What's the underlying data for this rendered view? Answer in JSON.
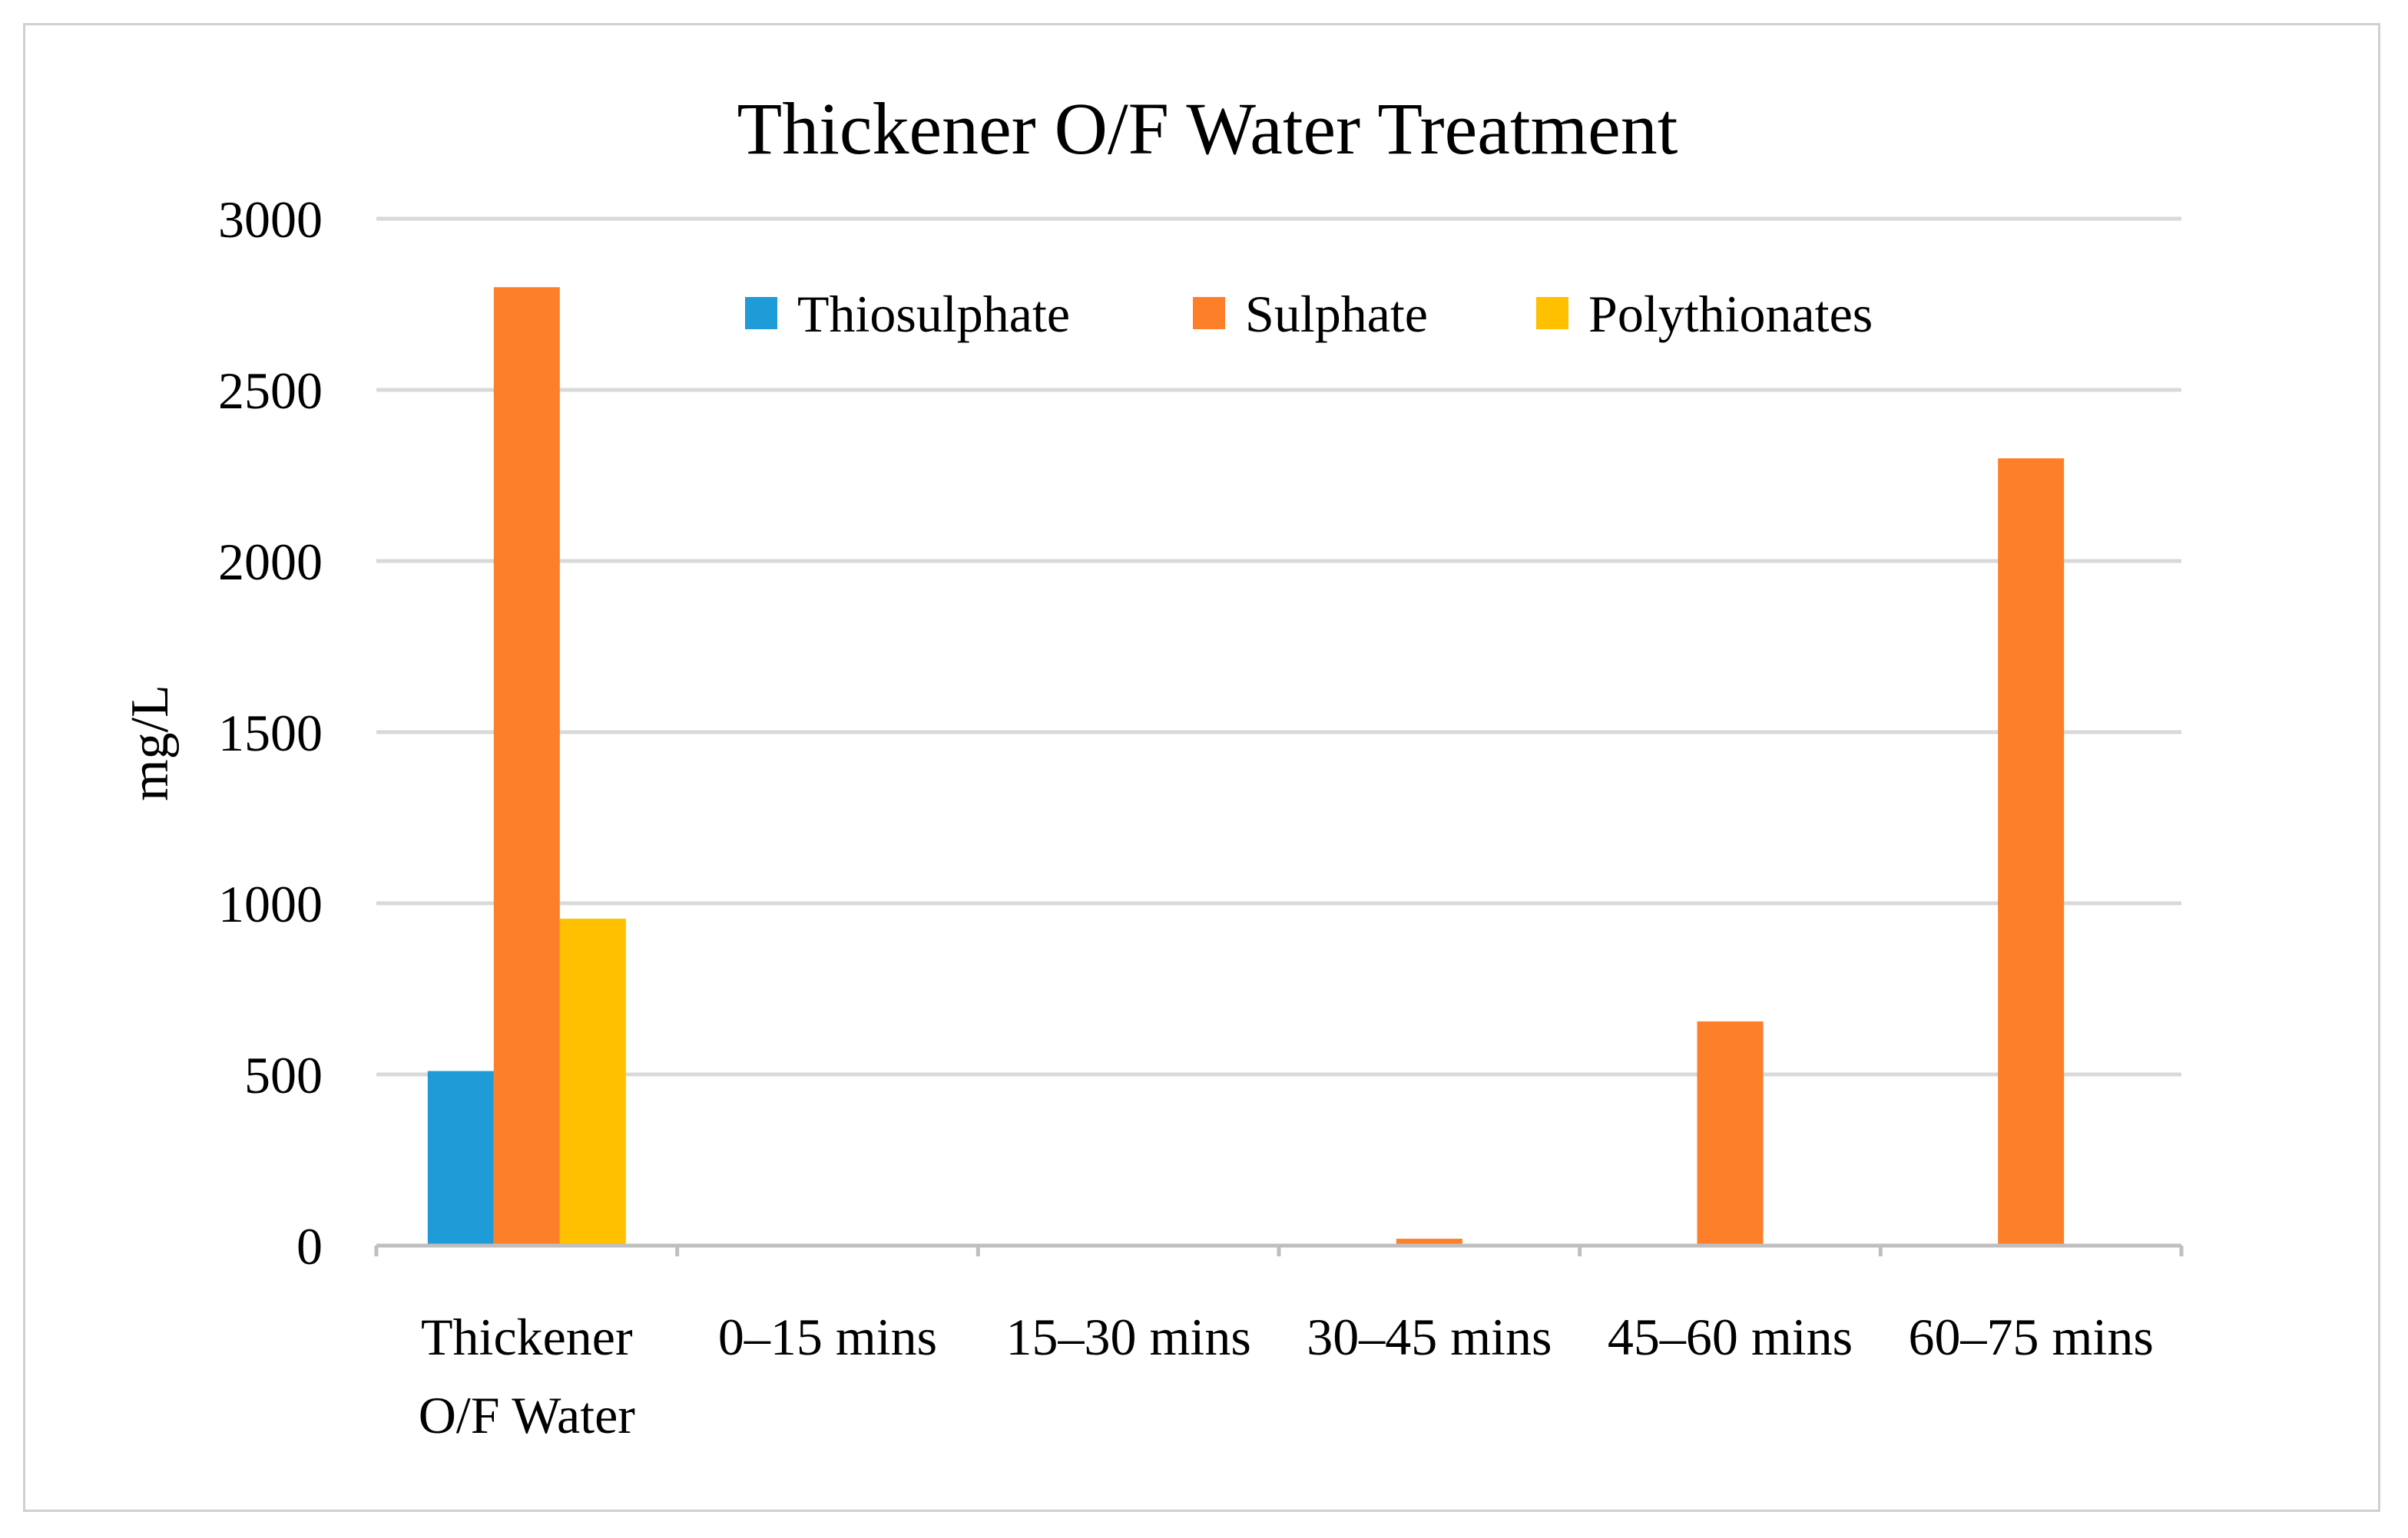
{
  "chart_data": {
    "type": "bar",
    "title": "Thickener  O/F Water Treatment",
    "xlabel": "",
    "ylabel": "mg/L",
    "ylim": [
      0,
      3000
    ],
    "yticks": [
      0,
      500,
      1000,
      1500,
      2000,
      2500,
      3000
    ],
    "yticks_labels": [
      "0",
      "500",
      "1000",
      "1500",
      "2000",
      "2500",
      "3000"
    ],
    "grid": true,
    "legend_position": "top-center",
    "categories": [
      [
        "Thickener",
        "O/F Water"
      ],
      [
        "0–15 mins"
      ],
      [
        "15–30 mins"
      ],
      [
        "30–45 mins"
      ],
      [
        "45–60 mins"
      ],
      [
        "60–75 mins"
      ]
    ],
    "series": [
      {
        "name": "Thiosulphate",
        "color": "#1f9bd7",
        "values": [
          510,
          0,
          0,
          0,
          0,
          0
        ]
      },
      {
        "name": "Sulphate",
        "color": "#fd7f2a",
        "values": [
          2800,
          0,
          0,
          20,
          655,
          2300
        ]
      },
      {
        "name": "Polythionates",
        "color": "#ffc000",
        "values": [
          955,
          0,
          0,
          0,
          0,
          0
        ]
      }
    ]
  },
  "colors": {
    "gridline": "#d9d9d9",
    "axis": "#bfbfbf",
    "border": "#d0d0d0"
  }
}
